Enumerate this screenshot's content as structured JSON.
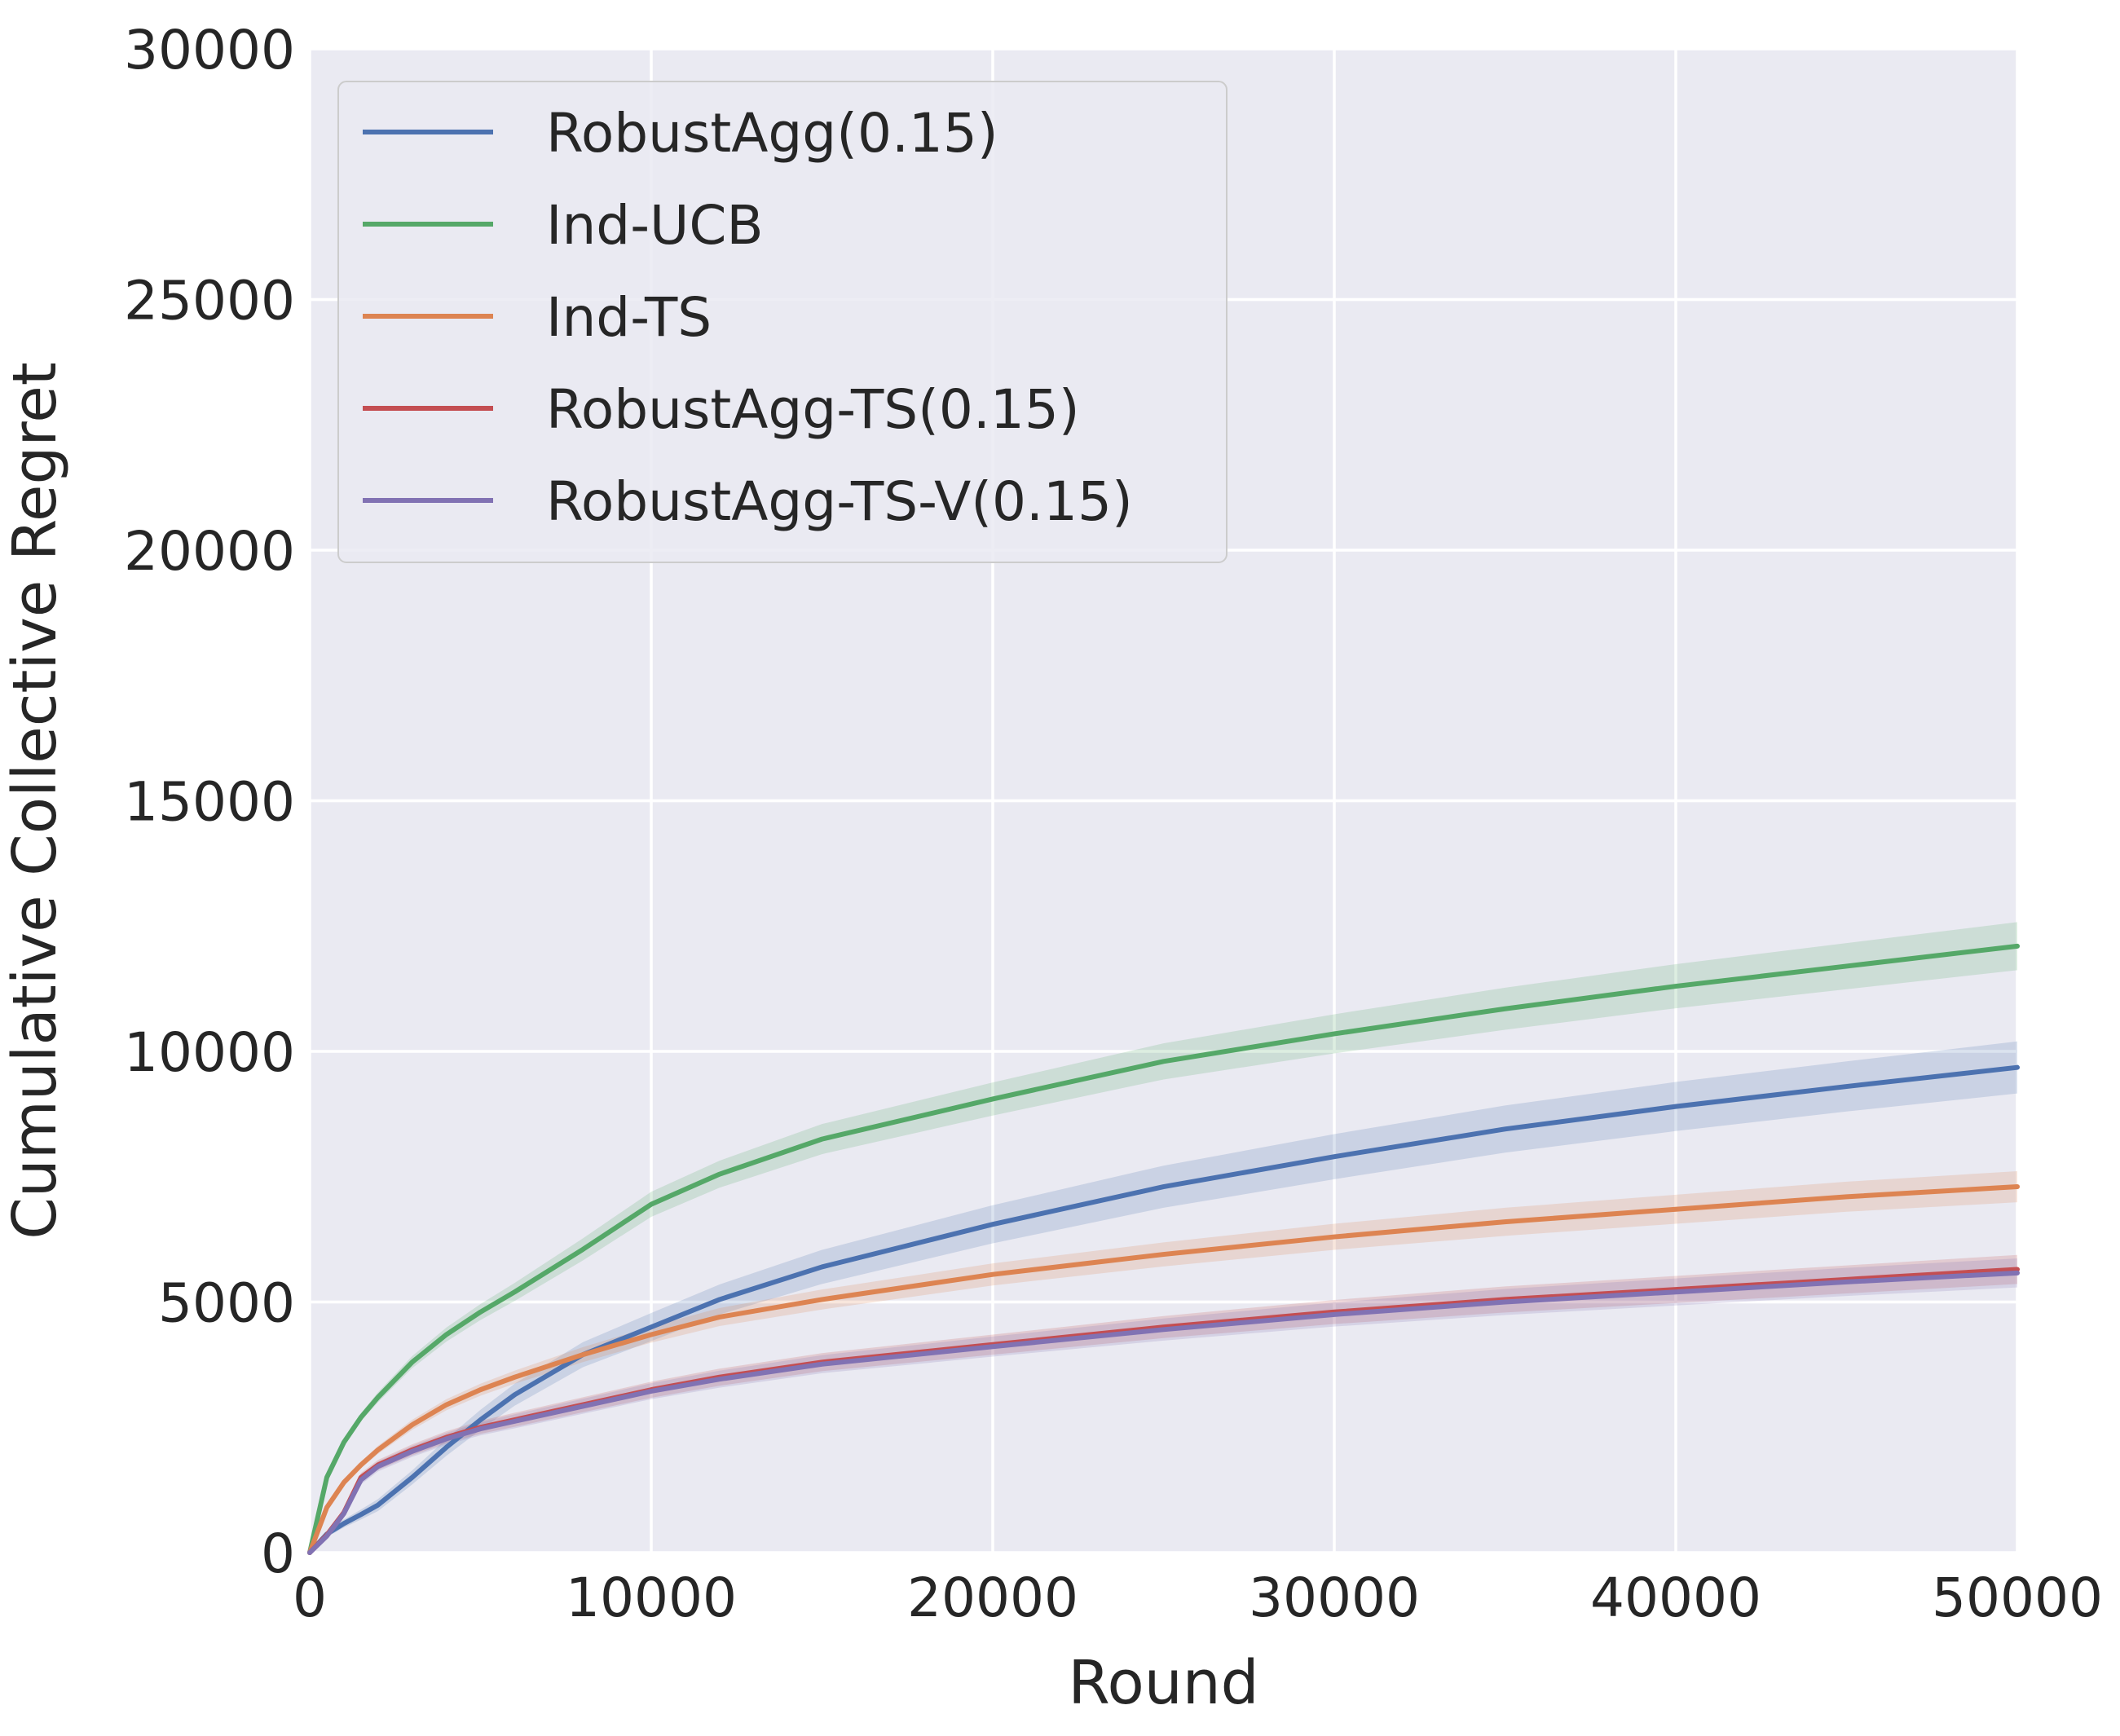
{
  "chart_data": {
    "type": "line",
    "title": "",
    "xlabel": "Round",
    "ylabel": "Cumulative Collective Regret",
    "xlim": [
      0,
      50000
    ],
    "ylim": [
      0,
      30000
    ],
    "xticks": [
      "0",
      "10000",
      "20000",
      "30000",
      "40000",
      "50000"
    ],
    "yticks": [
      "0",
      "5000",
      "10000",
      "15000",
      "20000",
      "25000",
      "30000"
    ],
    "grid": true,
    "legend_position": "top-left",
    "background": "#eaeaf2",
    "x": [
      0,
      500,
      1000,
      1500,
      2000,
      3000,
      4000,
      5000,
      6000,
      8000,
      10000,
      12000,
      15000,
      20000,
      25000,
      30000,
      35000,
      40000,
      45000,
      50000
    ],
    "series": [
      {
        "name": "RobustAgg(0.15)",
        "color": "#4c72b0",
        "values": [
          0,
          370,
          580,
          760,
          950,
          1500,
          2100,
          2650,
          3150,
          3950,
          4500,
          5050,
          5700,
          6550,
          7300,
          7900,
          8450,
          8900,
          9300,
          9680
        ],
        "band": [
          0,
          60,
          80,
          100,
          120,
          140,
          170,
          200,
          220,
          250,
          280,
          300,
          340,
          380,
          420,
          450,
          470,
          490,
          500,
          520
        ]
      },
      {
        "name": "Ind-UCB",
        "color": "#55a868",
        "values": [
          0,
          1500,
          2200,
          2700,
          3100,
          3800,
          4350,
          4800,
          5200,
          6050,
          6950,
          7550,
          8250,
          9050,
          9800,
          10350,
          10850,
          11300,
          11700,
          12100
        ],
        "band": [
          0,
          40,
          60,
          80,
          100,
          120,
          140,
          160,
          180,
          220,
          250,
          270,
          300,
          330,
          360,
          390,
          420,
          440,
          460,
          480
        ]
      },
      {
        "name": "Ind-TS",
        "color": "#dd8452",
        "values": [
          0,
          900,
          1400,
          1750,
          2050,
          2550,
          2950,
          3250,
          3500,
          3950,
          4350,
          4700,
          5050,
          5550,
          5950,
          6300,
          6600,
          6850,
          7100,
          7300
        ],
        "band": [
          0,
          40,
          60,
          70,
          80,
          100,
          110,
          120,
          130,
          150,
          160,
          180,
          200,
          220,
          240,
          260,
          280,
          290,
          300,
          310
        ]
      },
      {
        "name": "RobustAgg-TS(0.15)",
        "color": "#c44e52",
        "values": [
          0,
          350,
          800,
          1500,
          1750,
          2050,
          2300,
          2500,
          2650,
          2950,
          3250,
          3500,
          3800,
          4150,
          4500,
          4800,
          5050,
          5250,
          5450,
          5650
        ],
        "band": [
          0,
          50,
          70,
          90,
          100,
          110,
          120,
          130,
          140,
          150,
          160,
          170,
          180,
          200,
          220,
          240,
          260,
          270,
          280,
          290
        ]
      },
      {
        "name": "RobustAgg-TS-V(0.15)",
        "color": "#8172b3",
        "values": [
          0,
          330,
          780,
          1450,
          1720,
          2020,
          2270,
          2470,
          2620,
          2920,
          3220,
          3460,
          3760,
          4110,
          4450,
          4750,
          5000,
          5200,
          5400,
          5580
        ],
        "band": [
          0,
          50,
          70,
          90,
          100,
          110,
          120,
          130,
          140,
          150,
          160,
          170,
          180,
          200,
          220,
          240,
          260,
          270,
          280,
          290
        ]
      }
    ]
  }
}
